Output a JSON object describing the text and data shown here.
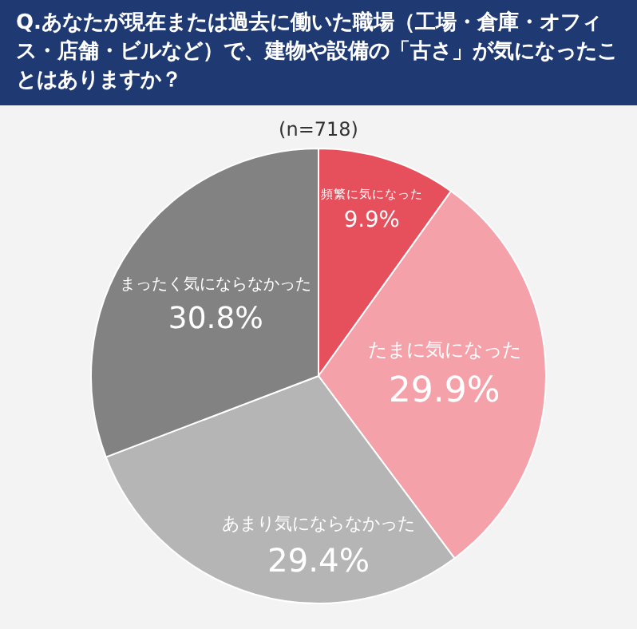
{
  "chart_data": {
    "type": "pie",
    "title": "Q.あなたが現在または過去に働いた職場（工場・倉庫・オフィス・店舗・ビルなど）で、建物や設備の「古さ」が気になったことはありますか？",
    "subtitle": "(n=718)",
    "categories": [
      "頻繁に気になった",
      "たまに気になった",
      "あまり気にならなかった",
      "まったく気にならなかった"
    ],
    "values": [
      9.9,
      29.9,
      29.4,
      30.8
    ],
    "colors": [
      "#e5505c",
      "#f4a1a9",
      "#b5b5b5",
      "#828282"
    ],
    "value_labels": [
      "9.9%",
      "29.9%",
      "29.4%",
      "30.8%"
    ],
    "legend": false
  }
}
